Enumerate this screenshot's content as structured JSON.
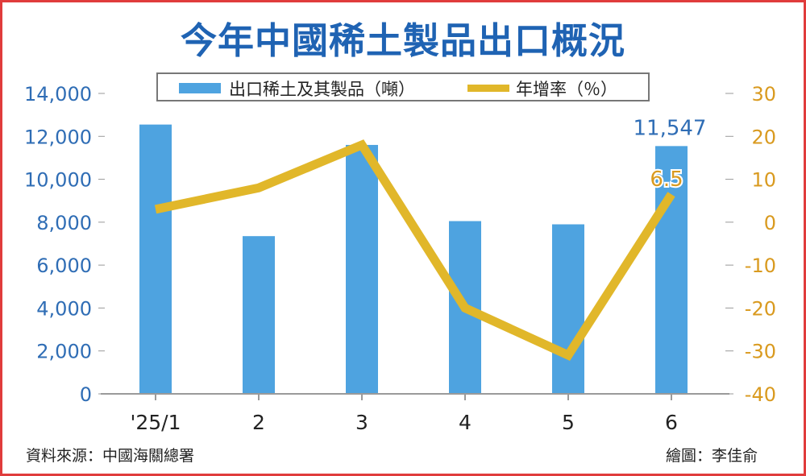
{
  "title": "今年中國稀土製品出口概況",
  "legend": {
    "bar_label": "出口稀土及其製品（噸）",
    "line_label": "年增率（％）"
  },
  "footer": {
    "source": "資料來源：中國海關總署",
    "credit": "繪圖：李佳俞"
  },
  "colors": {
    "bar": "#4ea3e0",
    "line": "#e1b72a",
    "left_axis_text": "#2f6db5",
    "right_axis_text": "#d99a1f",
    "title": "#1f63b3",
    "frame": "#e03c3c"
  },
  "chart_data": {
    "type": "bar+line",
    "categories": [
      "'25/1",
      "2",
      "3",
      "4",
      "5",
      "6"
    ],
    "series": [
      {
        "name": "出口稀土及其製品（噸）",
        "type": "bar",
        "axis": "left",
        "values": [
          12550,
          7350,
          11600,
          8050,
          7900,
          11547
        ]
      },
      {
        "name": "年增率（％）",
        "type": "line",
        "axis": "right",
        "values": [
          3,
          8,
          18,
          -20,
          -31,
          6.5
        ]
      }
    ],
    "left_axis": {
      "ylim": [
        0,
        14000
      ],
      "ticks": [
        "0",
        "2,000",
        "4,000",
        "6,000",
        "8,000",
        "10,000",
        "12,000",
        "14,000"
      ]
    },
    "right_axis": {
      "ylim": [
        -40,
        30
      ],
      "ticks": [
        "-40",
        "-30",
        "-20",
        "-10",
        "0",
        "10",
        "20",
        "30"
      ]
    },
    "annotations": [
      {
        "category": "6",
        "series": "bar",
        "text": "11,547"
      },
      {
        "category": "6",
        "series": "line",
        "text": "6.5"
      }
    ],
    "grid": false,
    "legend_position": "top"
  }
}
